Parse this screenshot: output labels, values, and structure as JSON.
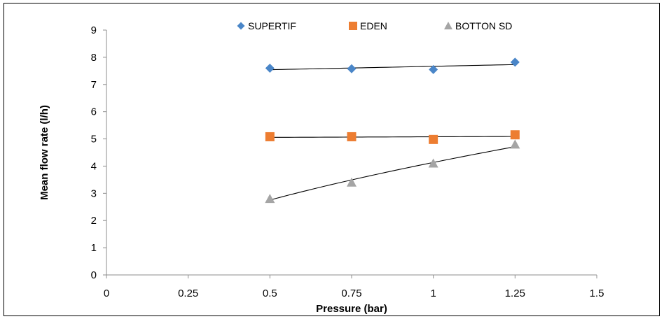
{
  "chart_data": {
    "type": "scatter",
    "title": "",
    "xlabel": "Pressure (bar)",
    "ylabel": "Mean flow rate (l/h)",
    "xlim": [
      0,
      1.5
    ],
    "ylim": [
      0,
      9
    ],
    "xticks": [
      0,
      0.25,
      0.5,
      0.75,
      1,
      1.25,
      1.5
    ],
    "xtick_labels": [
      "0",
      "0.25",
      "0.5",
      "0.75",
      "1",
      "1.25",
      "1.5"
    ],
    "yticks": [
      0,
      1,
      2,
      3,
      4,
      5,
      6,
      7,
      8,
      9
    ],
    "ytick_labels": [
      "0",
      "1",
      "2",
      "3",
      "4",
      "5",
      "6",
      "7",
      "8",
      "9"
    ],
    "grid": false,
    "legend_position": "top",
    "series": [
      {
        "name": "SUPERTIF",
        "marker": "diamond",
        "color": "#4A86C8",
        "x": [
          0.5,
          0.75,
          1,
          1.25
        ],
        "y": [
          7.6,
          7.58,
          7.55,
          7.82
        ],
        "trendline": "linear"
      },
      {
        "name": "EDEN",
        "marker": "square",
        "color": "#ED7D31",
        "x": [
          0.5,
          0.75,
          1,
          1.25
        ],
        "y": [
          5.08,
          5.08,
          4.98,
          5.15
        ],
        "trendline": "linear"
      },
      {
        "name": "BOTTON SD",
        "marker": "triangle",
        "color": "#A5A5A5",
        "x": [
          0.5,
          0.75,
          1,
          1.25
        ],
        "y": [
          2.8,
          3.4,
          4.1,
          4.8
        ],
        "trendline": "power"
      }
    ]
  }
}
